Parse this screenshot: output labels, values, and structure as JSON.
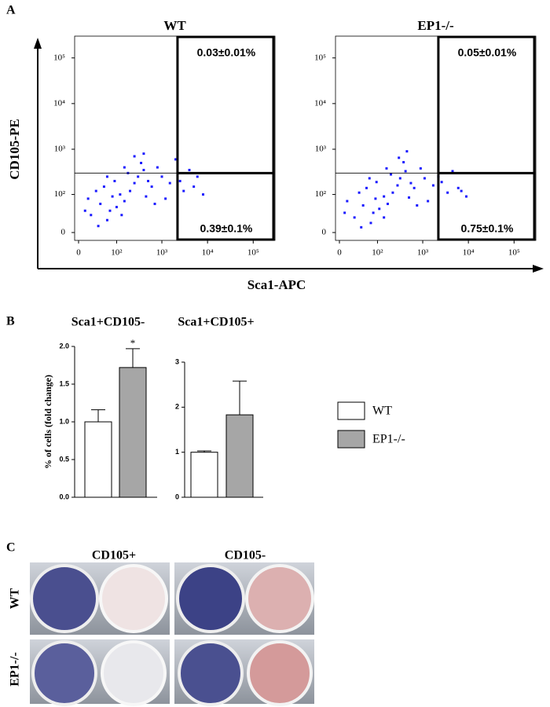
{
  "panel_labels": [
    "A",
    "B",
    "C"
  ],
  "flow_axes": {
    "y_label": "CD105-PE",
    "x_label": "Sca1-APC"
  },
  "photo_panel": {
    "columns": [
      "CD105+",
      "CD105-"
    ],
    "rows": [
      "WT",
      "EP1-/-"
    ]
  },
  "chart_data": [
    {
      "type": "scatter",
      "title": "WT",
      "color": "#1a1aff",
      "scale": "biexponential",
      "x": [
        20,
        40,
        60,
        80,
        100,
        15,
        30,
        50,
        70,
        120,
        150,
        200,
        250,
        300,
        180,
        400,
        500,
        600,
        800,
        350,
        1000,
        1500,
        2500,
        3000,
        4000,
        5000,
        8000,
        2000,
        250,
        150,
        90,
        10,
        35,
        130,
        60,
        450,
        700,
        1200,
        6000,
        400
      ],
      "y": [
        30,
        60,
        20,
        90,
        50,
        80,
        120,
        150,
        40,
        100,
        70,
        120,
        180,
        250,
        300,
        350,
        200,
        150,
        400,
        500,
        250,
        180,
        200,
        120,
        350,
        150,
        100,
        600,
        700,
        400,
        200,
        40,
        10,
        30,
        250,
        90,
        60,
        80,
        250,
        800
      ],
      "xlim": [
        0,
        300000
      ],
      "ylim": [
        0,
        300000
      ],
      "xticks": [
        0,
        {
          "value": 100,
          "label": "10²"
        },
        {
          "value": 1000,
          "label": "10³"
        },
        {
          "value": 10000,
          "label": "10⁴"
        },
        {
          "value": 100000,
          "label": "10⁵"
        }
      ],
      "yticks": [
        0,
        {
          "value": 100,
          "label": "10²"
        },
        {
          "value": 1000,
          "label": "10³"
        },
        {
          "value": 10000,
          "label": "10⁴"
        },
        {
          "value": 100000,
          "label": "10⁵"
        }
      ],
      "gates": {
        "x": 2200,
        "y": 300
      },
      "quadrant_labels": {
        "upper_right": "0.03±0.01%",
        "lower_right": "0.39±0.1%"
      }
    },
    {
      "type": "scatter",
      "title": "EP1-/-",
      "color": "#1a1aff",
      "scale": "biexponential",
      "x": [
        25,
        45,
        70,
        90,
        110,
        12,
        35,
        55,
        80,
        140,
        170,
        220,
        280,
        320,
        200,
        420,
        550,
        650,
        900,
        380,
        1100,
        1700,
        2600,
        3500,
        4500,
        6000,
        9000,
        2200,
        300,
        160,
        95,
        8,
        40,
        140,
        65,
        500,
        750,
        1300,
        7000,
        450
      ],
      "y": [
        25,
        55,
        15,
        80,
        45,
        70,
        110,
        140,
        35,
        90,
        60,
        110,
        160,
        230,
        280,
        330,
        180,
        140,
        380,
        520,
        230,
        160,
        190,
        110,
        330,
        140,
        90,
        250,
        650,
        380,
        190,
        35,
        8,
        25,
        230,
        85,
        55,
        70,
        120,
        900
      ],
      "xlim": [
        0,
        300000
      ],
      "ylim": [
        0,
        300000
      ],
      "xticks": [
        0,
        {
          "value": 100,
          "label": "10²"
        },
        {
          "value": 1000,
          "label": "10³"
        },
        {
          "value": 10000,
          "label": "10⁴"
        },
        {
          "value": 100000,
          "label": "10⁵"
        }
      ],
      "yticks": [
        0,
        {
          "value": 100,
          "label": "10²"
        },
        {
          "value": 1000,
          "label": "10³"
        },
        {
          "value": 10000,
          "label": "10⁴"
        },
        {
          "value": 100000,
          "label": "10⁵"
        }
      ],
      "gates": {
        "x": 2200,
        "y": 300
      },
      "quadrant_labels": {
        "upper_right": "0.05±0.01%",
        "lower_right": "0.75±0.1%"
      }
    },
    {
      "type": "bar",
      "title": "Sca1+CD105-",
      "ylabel": "% of cells (fold change)",
      "annotation": "*",
      "ylim": [
        0,
        2
      ],
      "yticks": [
        {
          "value": 0,
          "label": "0.0"
        },
        {
          "value": 0.5,
          "label": "0.5"
        },
        {
          "value": 1,
          "label": "1.0"
        },
        {
          "value": 1.5,
          "label": "1.5"
        },
        {
          "value": 2,
          "label": "2.0"
        }
      ],
      "series": [
        {
          "name": "WT",
          "color": "#ffffff",
          "values": [
            1.0
          ],
          "errors": [
            0.16
          ]
        },
        {
          "name": "EP1-/-",
          "color": "#a6a6a6",
          "values": [
            1.72
          ],
          "errors": [
            0.25
          ]
        }
      ]
    },
    {
      "type": "bar",
      "title": "Sca1+CD105+",
      "ylim": [
        0,
        3
      ],
      "yticks": [
        0,
        1,
        2,
        3
      ],
      "series": [
        {
          "color": "#ffffff",
          "values": [
            1.0
          ],
          "errors": [
            0.03
          ]
        },
        {
          "color": "#a6a6a6",
          "values": [
            1.83
          ],
          "errors": [
            0.75
          ]
        }
      ]
    }
  ]
}
